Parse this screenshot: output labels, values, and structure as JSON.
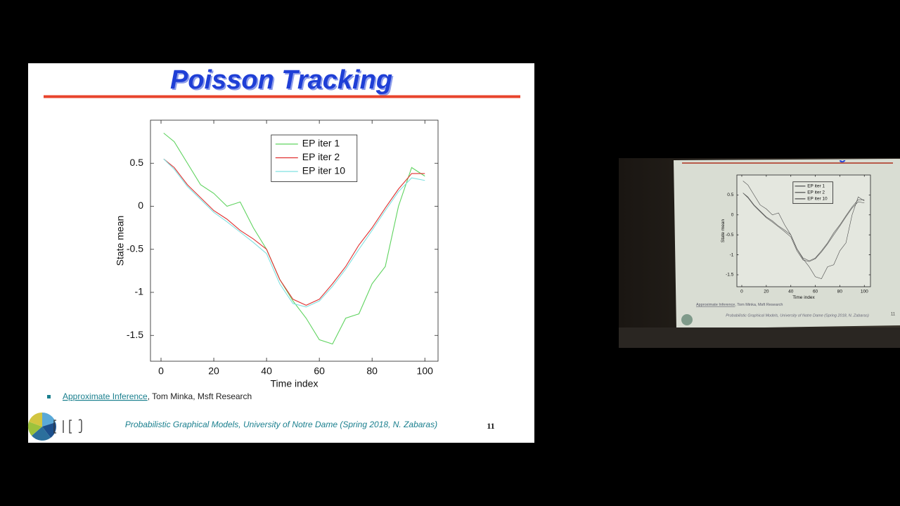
{
  "slide": {
    "title": "Poisson Tracking",
    "reference": {
      "link": "Approximate Inference",
      "rest": ", Tom Minka, Msft Research"
    },
    "footer": "Probabilistic Graphical Models, University of Notre Dame (Spring 2018, N. Zabaras)",
    "page_number": "11"
  },
  "chart_data": {
    "type": "line",
    "x": [
      1,
      5,
      10,
      15,
      20,
      25,
      30,
      35,
      40,
      45,
      50,
      55,
      60,
      65,
      70,
      75,
      80,
      85,
      90,
      95,
      100
    ],
    "series": [
      {
        "name": "EP iter 1",
        "color": "#5fd35f",
        "values": [
          0.85,
          0.75,
          0.5,
          0.25,
          0.15,
          0.0,
          0.05,
          -0.25,
          -0.5,
          -0.85,
          -1.1,
          -1.3,
          -1.55,
          -1.6,
          -1.3,
          -1.25,
          -0.9,
          -0.7,
          0.0,
          0.45,
          0.35
        ]
      },
      {
        "name": "EP iter 2",
        "color": "#e03030",
        "values": [
          0.55,
          0.45,
          0.25,
          0.1,
          -0.05,
          -0.15,
          -0.28,
          -0.38,
          -0.5,
          -0.85,
          -1.08,
          -1.15,
          -1.08,
          -0.9,
          -0.7,
          -0.45,
          -0.25,
          -0.02,
          0.2,
          0.38,
          0.38
        ]
      },
      {
        "name": "EP iter 10",
        "color": "#7fe0e0",
        "values": [
          0.55,
          0.43,
          0.23,
          0.08,
          -0.07,
          -0.18,
          -0.3,
          -0.42,
          -0.55,
          -0.9,
          -1.13,
          -1.17,
          -1.1,
          -0.93,
          -0.73,
          -0.5,
          -0.28,
          -0.05,
          0.17,
          0.33,
          0.3
        ]
      }
    ],
    "xlabel": "Time index",
    "ylabel": "State mean",
    "xlim": [
      -4,
      105
    ],
    "ylim": [
      -1.8,
      1
    ],
    "xticks": [
      0,
      20,
      40,
      60,
      80,
      100
    ],
    "yticks": [
      0.5,
      0,
      -0.5,
      -1,
      -1.5
    ],
    "legend": "upper center",
    "grid": false
  }
}
